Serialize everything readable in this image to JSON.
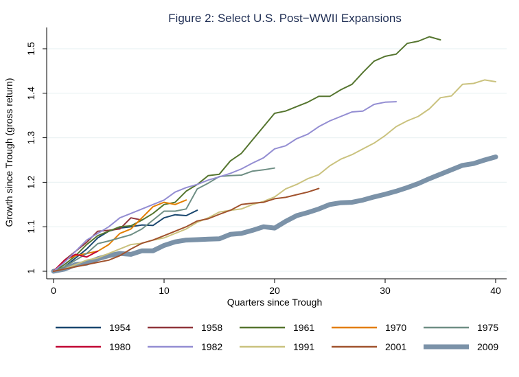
{
  "chart_data": {
    "type": "line",
    "title": "Figure 2: Select U.S. Post−WWII Expansions",
    "xlabel": "Quarters since Trough",
    "ylabel": "Growth since Trough (gross return)",
    "xlim": [
      0,
      40
    ],
    "ylim": [
      0.985,
      1.545
    ],
    "xticks": [
      0,
      10,
      20,
      30,
      40
    ],
    "yticks": [
      1,
      1.1,
      1.2,
      1.3,
      1.4,
      1.5
    ],
    "ytick_labels": [
      "1",
      "1.1",
      "1.2",
      "1.3",
      "1.4",
      "1.5"
    ],
    "grid": true,
    "legend_position": "bottom",
    "series": [
      {
        "name": "1954",
        "color": "#1a476f",
        "values": [
          1.0,
          1.01,
          1.03,
          1.05,
          1.075,
          1.09,
          1.097,
          1.1,
          1.104,
          1.103,
          1.12,
          1.127,
          1.125,
          1.137
        ]
      },
      {
        "name": "1958",
        "color": "#90353b",
        "values": [
          1.0,
          1.025,
          1.045,
          1.065,
          1.09,
          1.092,
          1.095,
          1.12,
          1.115
        ]
      },
      {
        "name": "1961",
        "color": "#55752f",
        "values": [
          1.0,
          1.015,
          1.035,
          1.06,
          1.08,
          1.09,
          1.1,
          1.102,
          1.115,
          1.13,
          1.15,
          1.155,
          1.18,
          1.195,
          1.215,
          1.218,
          1.248,
          1.265,
          1.295,
          1.325,
          1.355,
          1.36,
          1.37,
          1.38,
          1.393,
          1.393,
          1.408,
          1.42,
          1.447,
          1.472,
          1.483,
          1.488,
          1.512,
          1.517,
          1.527,
          1.52
        ]
      },
      {
        "name": "1970",
        "color": "#e37e00",
        "values": [
          1.0,
          1.025,
          1.035,
          1.04,
          1.045,
          1.06,
          1.085,
          1.095,
          1.12,
          1.145,
          1.155,
          1.15,
          1.16
        ]
      },
      {
        "name": "1975",
        "color": "#6e8e84",
        "values": [
          1.0,
          1.01,
          1.025,
          1.04,
          1.062,
          1.068,
          1.075,
          1.082,
          1.095,
          1.115,
          1.135,
          1.135,
          1.14,
          1.185,
          1.198,
          1.213,
          1.215,
          1.216,
          1.225,
          1.228,
          1.232
        ]
      },
      {
        "name": "1980",
        "color": "#c10534",
        "values": [
          1.0,
          1.025,
          1.038,
          1.032,
          1.045
        ]
      },
      {
        "name": "1982",
        "color": "#938dd2",
        "values": [
          1.0,
          1.02,
          1.045,
          1.07,
          1.085,
          1.1,
          1.12,
          1.13,
          1.14,
          1.15,
          1.16,
          1.178,
          1.188,
          1.195,
          1.205,
          1.212,
          1.22,
          1.23,
          1.243,
          1.255,
          1.275,
          1.282,
          1.298,
          1.308,
          1.325,
          1.338,
          1.348,
          1.358,
          1.36,
          1.375,
          1.38,
          1.381
        ]
      },
      {
        "name": "1991",
        "color": "#cac27e",
        "values": [
          1.0,
          1.005,
          1.015,
          1.025,
          1.03,
          1.04,
          1.05,
          1.06,
          1.063,
          1.07,
          1.075,
          1.085,
          1.095,
          1.11,
          1.12,
          1.133,
          1.137,
          1.14,
          1.15,
          1.157,
          1.167,
          1.185,
          1.195,
          1.208,
          1.217,
          1.237,
          1.252,
          1.262,
          1.275,
          1.288,
          1.305,
          1.325,
          1.338,
          1.348,
          1.365,
          1.39,
          1.394,
          1.42,
          1.422,
          1.43,
          1.426
        ]
      },
      {
        "name": "2001",
        "color": "#a0522d",
        "values": [
          1.0,
          1.005,
          1.01,
          1.015,
          1.02,
          1.025,
          1.035,
          1.05,
          1.063,
          1.07,
          1.08,
          1.09,
          1.1,
          1.113,
          1.118,
          1.128,
          1.137,
          1.15,
          1.153,
          1.155,
          1.163,
          1.166,
          1.172,
          1.178,
          1.186
        ]
      },
      {
        "name": "2009",
        "color": "#7b92a8",
        "thick": true,
        "values": [
          1.0,
          1.005,
          1.015,
          1.018,
          1.028,
          1.035,
          1.04,
          1.038,
          1.046,
          1.046,
          1.058,
          1.066,
          1.07,
          1.071,
          1.072,
          1.073,
          1.083,
          1.085,
          1.092,
          1.1,
          1.097,
          1.112,
          1.125,
          1.132,
          1.14,
          1.15,
          1.154,
          1.155,
          1.16,
          1.167,
          1.173,
          1.18,
          1.188,
          1.197,
          1.208,
          1.218,
          1.228,
          1.238,
          1.242,
          1.25,
          1.257
        ]
      }
    ]
  }
}
